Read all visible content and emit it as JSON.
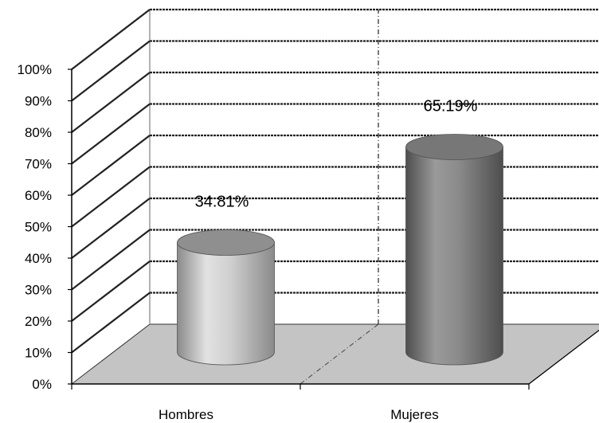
{
  "chart_data": {
    "type": "bar",
    "bar_shape": "cylinder",
    "categories": [
      "Hombres",
      "Mujeres"
    ],
    "values": [
      34.81,
      65.19
    ],
    "data_labels": [
      "34.81%",
      "65.19%"
    ],
    "ylim": [
      0,
      100
    ],
    "y_ticks": [
      "0%",
      "10%",
      "20%",
      "30%",
      "40%",
      "50%",
      "60%",
      "70%",
      "80%",
      "90%",
      "100%"
    ],
    "grid": true,
    "three_d": true,
    "title": "",
    "xlabel": "",
    "ylabel": "",
    "colors": {
      "bar_light": "#e2e2e2",
      "bar_dark": "#6e6e6e",
      "bar_top": "#8c8c8c",
      "floor": "#c4c4c4",
      "gridline": "#222222"
    }
  }
}
